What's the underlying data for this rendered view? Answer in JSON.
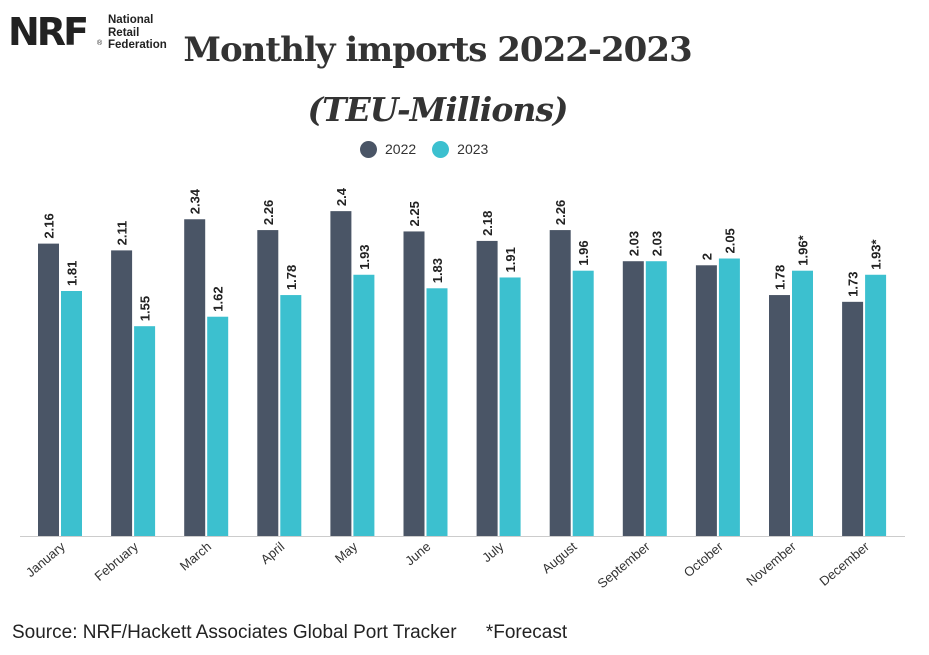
{
  "logo": {
    "mark": "NRF",
    "reg": "®",
    "lines": [
      "National",
      "Retail",
      "Federation"
    ]
  },
  "header": {
    "title": "Monthly imports 2022-2023",
    "subtitle": "(TEU-Millions)"
  },
  "footer": {
    "source": "Source: NRF/Hackett Associates Global Port Tracker",
    "note": "*Forecast"
  },
  "colors": {
    "s2022": "#4a5566",
    "s2023": "#3cc0cf",
    "axis": "#cccccc"
  },
  "chart_data": {
    "type": "bar",
    "categories": [
      "January",
      "February",
      "March",
      "April",
      "May",
      "June",
      "July",
      "August",
      "September",
      "October",
      "November",
      "December"
    ],
    "series": [
      {
        "name": "2022",
        "values": [
          2.16,
          2.11,
          2.34,
          2.26,
          2.4,
          2.25,
          2.18,
          2.26,
          2.03,
          2,
          1.78,
          1.73
        ],
        "labels": [
          "2.16",
          "2.11",
          "2.34",
          "2.26",
          "2.4",
          "2.25",
          "2.18",
          "2.26",
          "2.03",
          "2",
          "1.78",
          "1.73"
        ]
      },
      {
        "name": "2023",
        "values": [
          1.81,
          1.55,
          1.62,
          1.78,
          1.93,
          1.83,
          1.91,
          1.96,
          2.03,
          2.05,
          1.96,
          1.93
        ],
        "labels": [
          "1.81",
          "1.55",
          "1.62",
          "1.78",
          "1.93",
          "1.83",
          "1.91",
          "1.96",
          "2.03",
          "2.05",
          "1.96*",
          "1.93*"
        ]
      }
    ],
    "ylim": [
      0,
      2.5
    ],
    "grid": false,
    "legend": "top-center"
  }
}
